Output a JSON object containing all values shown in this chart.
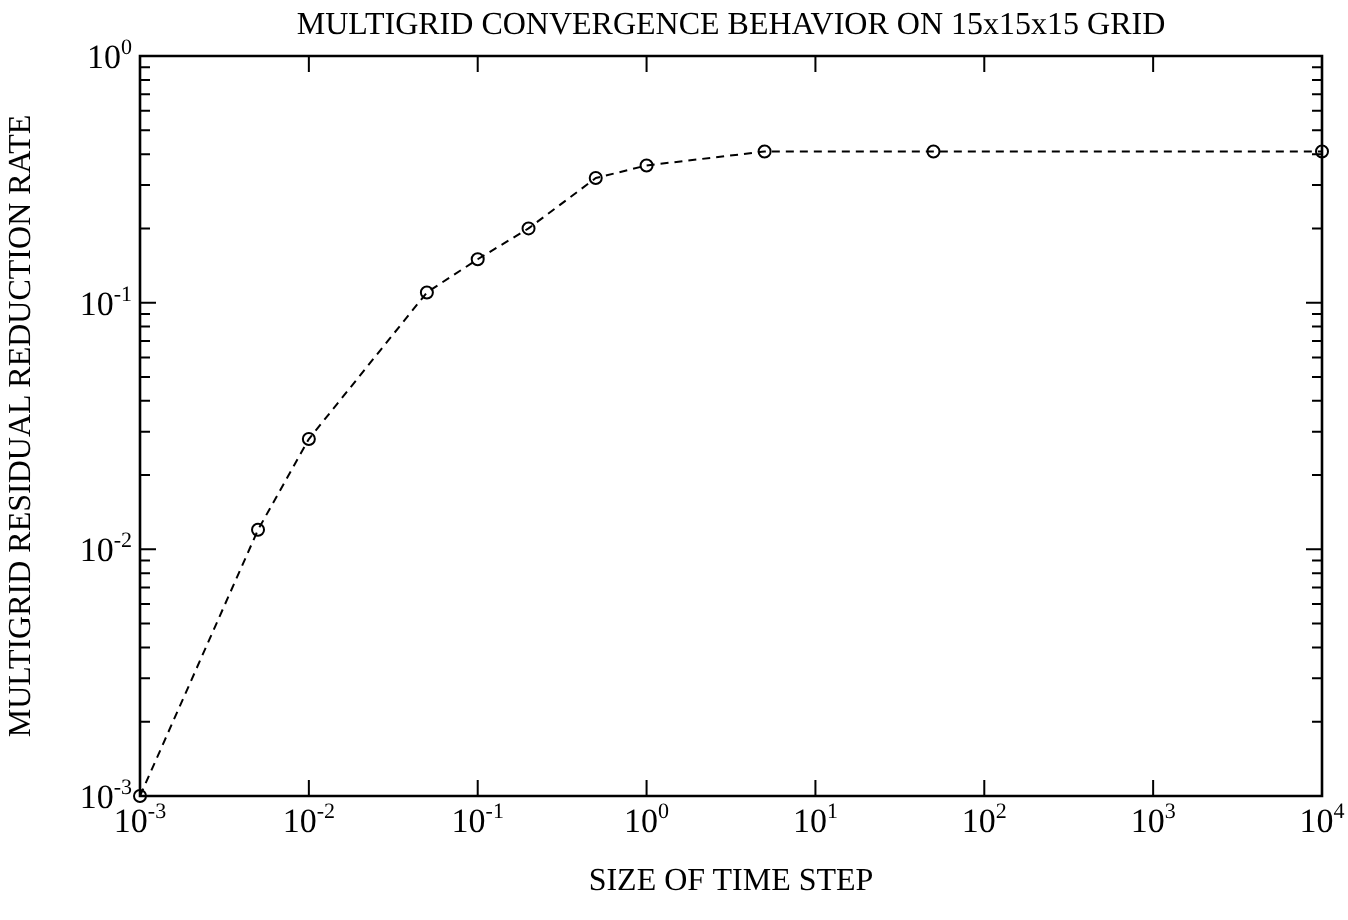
{
  "chart_data": {
    "type": "line",
    "title": "MULTIGRID CONVERGENCE BEHAVIOR ON 15x15x15 GRID",
    "xlabel": "SIZE OF TIME STEP",
    "ylabel": "MULTIGRID RESIDUAL REDUCTION RATE",
    "log": "xy",
    "grid": false,
    "legend": false,
    "marker": "circle",
    "line_style": "dashed",
    "series": [
      {
        "color": "#000000",
        "x": [
          0.001,
          0.005,
          0.01,
          0.05,
          0.1,
          0.2,
          0.5,
          1,
          5,
          50,
          10000
        ],
        "values": [
          0.001,
          0.012,
          0.028,
          0.11,
          0.15,
          0.2,
          0.32,
          0.36,
          0.41,
          0.41,
          0.41
        ]
      }
    ],
    "xlim": [
      0.001,
      10000
    ],
    "xticks": [
      {
        "value": 0.001,
        "label": "10$^{-3}$"
      },
      {
        "value": 0.01,
        "label": "10$^{-2}$"
      },
      {
        "value": 0.1,
        "label": "10$^{-1}$"
      },
      {
        "value": 1,
        "label": "10$^{0}$"
      },
      {
        "value": 10,
        "label": "10$^{1}$"
      },
      {
        "value": 100,
        "label": "10$^{2}$"
      },
      {
        "value": 1000,
        "label": "10$^{3}$"
      },
      {
        "value": 10000,
        "label": "10$^{4}$"
      }
    ],
    "ylim": [
      0.001,
      1
    ],
    "yticks": [
      {
        "value": 0.001,
        "label": "10$^{-3}$"
      },
      {
        "value": 0.002,
        "label": null
      },
      {
        "value": 0.003,
        "label": null
      },
      {
        "value": 0.004,
        "label": null
      },
      {
        "value": 0.005,
        "label": null
      },
      {
        "value": 0.006,
        "label": null
      },
      {
        "value": 0.007,
        "label": null
      },
      {
        "value": 0.008,
        "label": null
      },
      {
        "value": 0.009,
        "label": null
      },
      {
        "value": 0.01,
        "label": "10$^{-2}$"
      },
      {
        "value": 0.02,
        "label": null
      },
      {
        "value": 0.03,
        "label": null
      },
      {
        "value": 0.04,
        "label": null
      },
      {
        "value": 0.05,
        "label": null
      },
      {
        "value": 0.06,
        "label": null
      },
      {
        "value": 0.07,
        "label": null
      },
      {
        "value": 0.08,
        "label": null
      },
      {
        "value": 0.09,
        "label": null
      },
      {
        "value": 0.1,
        "label": "10$^{-1}$"
      },
      {
        "value": 0.2,
        "label": null
      },
      {
        "value": 0.3,
        "label": null
      },
      {
        "value": 0.4,
        "label": null
      },
      {
        "value": 0.5,
        "label": null
      },
      {
        "value": 0.6,
        "label": null
      },
      {
        "value": 0.7,
        "label": null
      },
      {
        "value": 0.8,
        "label": null
      },
      {
        "value": 0.9,
        "label": null
      },
      {
        "value": 1,
        "label": "10$^{0}$"
      }
    ]
  }
}
